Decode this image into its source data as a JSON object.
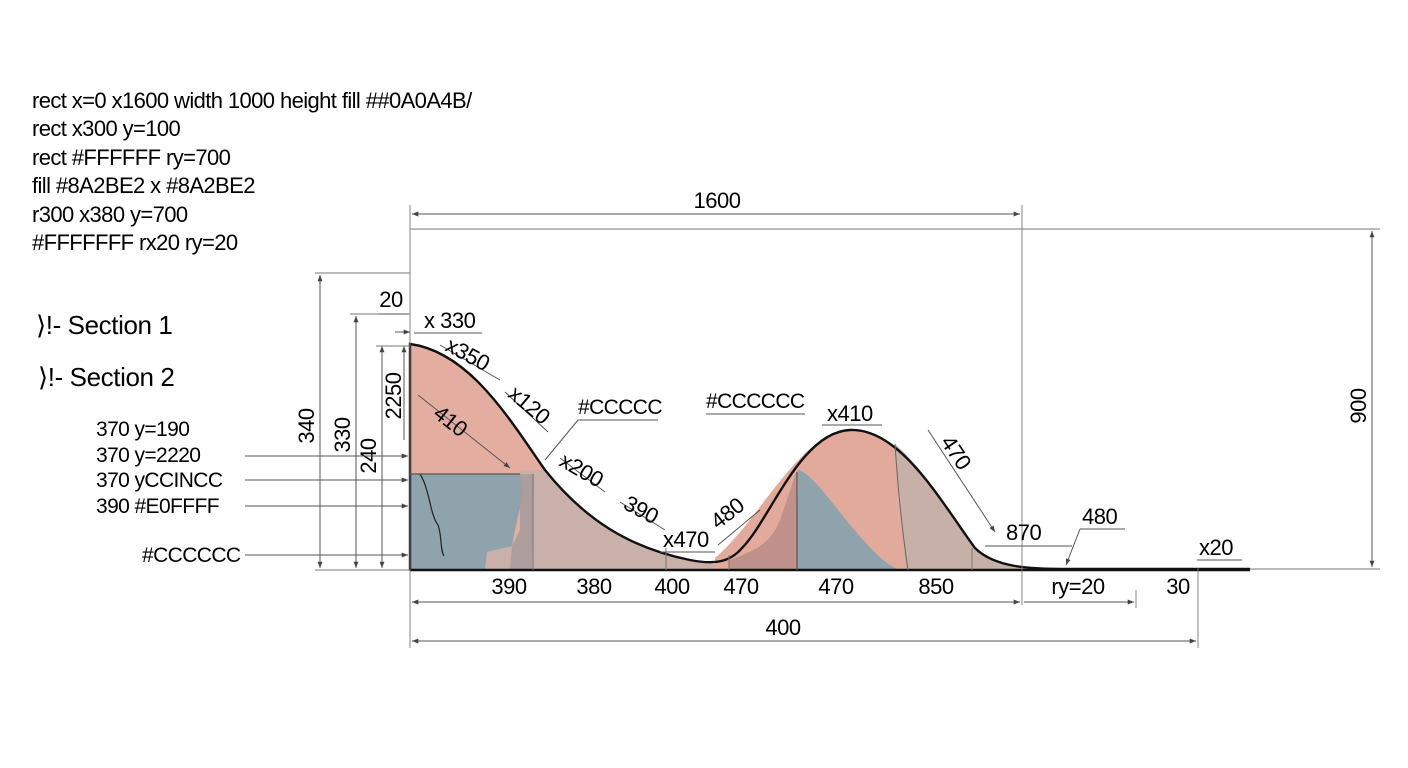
{
  "notes": [
    "rect x=0 x1600 width 1000 height fill ##0A0A4B/",
    "rect x300 y=100",
    "rect #FFFFFF ry=700",
    "fill #8A2BE2 x #8A2BE2",
    "r300 x380 y=700",
    "#FFFFFFF rx20 ry=20"
  ],
  "sections": [
    "⟩!- Section 1",
    "⟩!- Section 2"
  ],
  "callouts": [
    "370   y=190",
    "370   y=2220",
    "370 yCCINCC",
    "390 #E0FFFF",
    "#CCCCCC"
  ],
  "dimensions": {
    "top_width": "1600",
    "right_height": "900",
    "left_outer": "340",
    "left_mid": "330",
    "left_inner_a": "240",
    "left_inner_b": "2250",
    "corner_gap": "20",
    "curve_labels": [
      "x 330",
      "x350",
      "x120",
      "410",
      "x200",
      "390",
      "x470",
      "480",
      "x410",
      "470",
      "870",
      "480",
      "x20"
    ],
    "color_labels": [
      "#CCCCC",
      "#CCCCCC"
    ],
    "baseline_labels": [
      "390",
      "380",
      "400",
      "470",
      "470",
      "850",
      "ry=20",
      "30"
    ],
    "bottom_total": "400"
  },
  "colors": {
    "salmon": "#e2aa9a",
    "slate": "#8fa3ad",
    "taupe": "#c6b0a8",
    "outline": "#111111",
    "dim": "#555555"
  }
}
